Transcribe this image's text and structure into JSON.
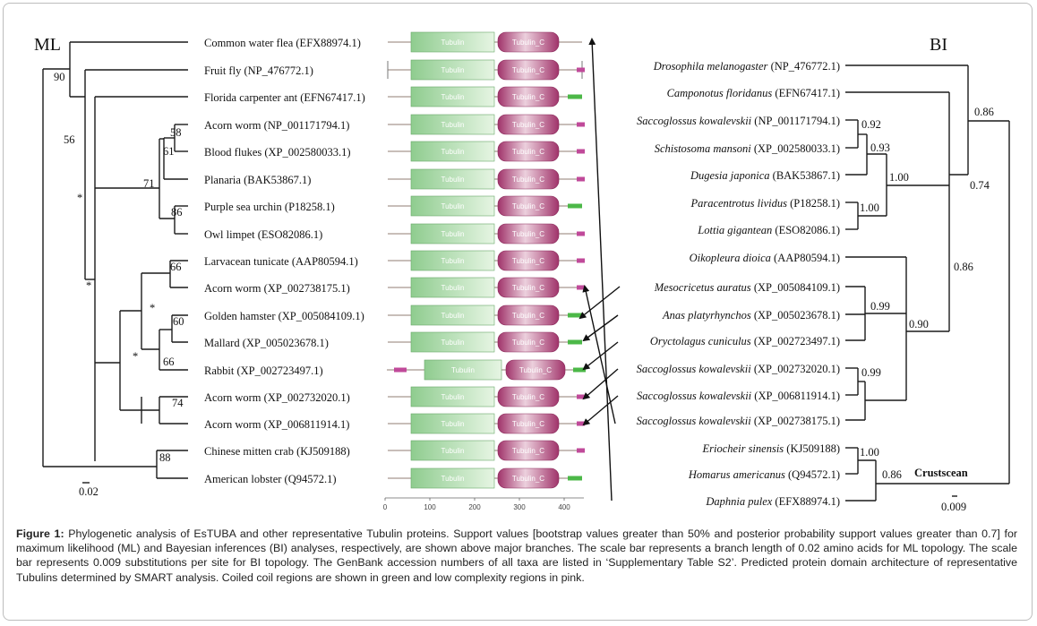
{
  "ml_panel": {
    "header": "ML",
    "taxa": [
      "Common water flea (EFX88974.1)",
      "Fruit fly (NP_476772.1)",
      "Florida carpenter ant (EFN67417.1)",
      "Acorn worm (NP_001171794.1)",
      "Blood flukes (XP_002580033.1)",
      "Planaria (BAK53867.1)",
      "Purple sea urchin (P18258.1)",
      "Owl limpet (ESO82086.1)",
      "Larvacean tunicate (AAP80594.1)",
      "Acorn worm (XP_002738175.1)",
      "Golden hamster (XP_005084109.1)",
      "Mallard (XP_005023678.1)",
      "Rabbit (XP_002723497.1)",
      "Acorn worm (XP_002732020.1)",
      "Acorn worm (XP_006811914.1)",
      "Chinese mitten crab (KJ509188)",
      "American lobster (Q94572.1)"
    ],
    "support": [
      "90",
      "56",
      "58",
      "61",
      "71",
      "86",
      "*",
      "*",
      "66",
      "*",
      "60",
      "66",
      "*",
      "74",
      "88"
    ],
    "scale": "0.02"
  },
  "domains": {
    "labels": [
      "Tubulin",
      "Tubulin_C"
    ],
    "axis_ticks": [
      "0",
      "100",
      "200",
      "300",
      "400"
    ],
    "colors": {
      "tubulin": "#8fcc8f",
      "tubulin_c": "#a0336a",
      "coiled_coil": "#4cb848",
      "low_complexity": "#c04a9a",
      "backbone": "#b5a9a2"
    },
    "rows": [
      {
        "tail": "none"
      },
      {
        "tail": "low_complexity"
      },
      {
        "tail": "coiled_coil"
      },
      {
        "tail": "low_complexity"
      },
      {
        "tail": "low_complexity"
      },
      {
        "tail": "low_complexity"
      },
      {
        "tail": "coiled_coil"
      },
      {
        "tail": "low_complexity"
      },
      {
        "tail": "low_complexity"
      },
      {
        "tail": "low_complexity"
      },
      {
        "tail": "coiled_coil"
      },
      {
        "tail": "coiled_coil"
      },
      {
        "tail": "coiled_coil"
      },
      {
        "tail": "low_complexity"
      },
      {
        "tail": "low_complexity"
      },
      {
        "tail": "low_complexity"
      },
      {
        "tail": "coiled_coil"
      }
    ]
  },
  "bi_panel": {
    "header": "BI",
    "taxa": [
      {
        "species": "Drosophila melanogaster",
        "acc": " (NP_476772.1)"
      },
      {
        "species": "Camponotus floridanus",
        "acc": " (EFN67417.1)"
      },
      {
        "species": "Saccoglossus kowalevskii",
        "acc": " (NP_001171794.1)"
      },
      {
        "species": "Schistosoma mansoni",
        "acc": " (XP_002580033.1)"
      },
      {
        "species": "Dugesia japonica",
        "acc": " (BAK53867.1)"
      },
      {
        "species": "Paracentrotus lividus",
        "acc": " (P18258.1)"
      },
      {
        "species": "Lottia gigantean",
        "acc": " (ESO82086.1)"
      },
      {
        "species": "Oikopleura dioica",
        "acc": " (AAP80594.1)"
      },
      {
        "species": "Mesocricetus auratus",
        "acc": " (XP_005084109.1)"
      },
      {
        "species": "Anas platyrhynchos",
        "acc": " (XP_005023678.1)"
      },
      {
        "species": "Oryctolagus cuniculus",
        "acc": " (XP_002723497.1)"
      },
      {
        "species": "Saccoglossus kowalevskii",
        "acc": " (XP_002732020.1)"
      },
      {
        "species": "Saccoglossus kowalevskii",
        "acc": " (XP_006811914.1)"
      },
      {
        "species": "Saccoglossus kowalevskii",
        "acc": " (XP_002738175.1)"
      },
      {
        "species": "Eriocheir sinensis",
        "acc": " (KJ509188)"
      },
      {
        "species": "Homarus americanus",
        "acc": " (Q94572.1)"
      },
      {
        "species": "Daphnia pulex",
        "acc": " (EFX88974.1)"
      }
    ],
    "support": [
      "0.92",
      "0.93",
      "1.00",
      "1.00",
      "0.86",
      "0.74",
      "0.86",
      "0.99",
      "0.99",
      "0.90",
      "1.00",
      "0.86"
    ],
    "clade_label": "Crustscean",
    "scale": "0.009"
  },
  "caption": {
    "label": "Figure 1:",
    "text": " Phylogenetic analysis of EsTUBA and other representative Tubulin proteins. Support values [bootstrap values greater than 50% and posterior probability support values greater than 0.7] for maximum likelihood (ML) and Bayesian inferences (BI) analyses, respectively, are shown above major branches. The scale bar represents a branch length of 0.02 amino acids for ML topology. The scale bar represents 0.009 substitutions per site for BI topology. The GenBank accession numbers of all taxa are listed in ‘Supplementary Table S2’. Predicted protein domain architecture of representative Tubulins determined by SMART analysis. Coiled coil regions are shown in green and low complexity regions in pink."
  }
}
